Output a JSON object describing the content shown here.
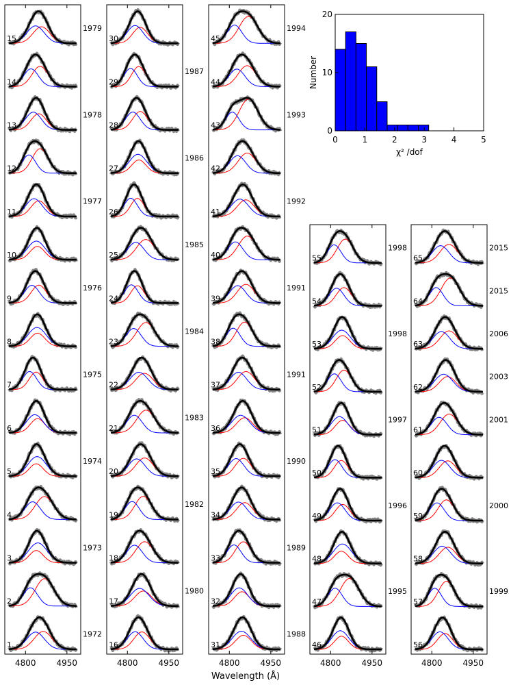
{
  "chart_data": [
    {
      "type": "line",
      "panel_grid": "5 columns of stacked emission-line profile fits (gray data, black total fit, blue and red Gaussian components)",
      "xlabel": "Wavelength (Å)",
      "x_ticks": [
        "4800",
        "4950"
      ],
      "xlim": [
        4725,
        5000
      ],
      "columns": [
        {
          "panels": [
            {
              "n": "15",
              "year": "1979"
            },
            {
              "n": "14",
              "year": ""
            },
            {
              "n": "13",
              "year": "1978"
            },
            {
              "n": "12",
              "year": ""
            },
            {
              "n": "11",
              "year": "1977"
            },
            {
              "n": "10",
              "year": ""
            },
            {
              "n": "9",
              "year": "1976"
            },
            {
              "n": "8",
              "year": ""
            },
            {
              "n": "7",
              "year": "1975"
            },
            {
              "n": "6",
              "year": ""
            },
            {
              "n": "5",
              "year": "1974"
            },
            {
              "n": "4",
              "year": ""
            },
            {
              "n": "3",
              "year": "1973"
            },
            {
              "n": "2",
              "year": ""
            },
            {
              "n": "1",
              "year": "1972"
            }
          ]
        },
        {
          "panels": [
            {
              "n": "30",
              "year": ""
            },
            {
              "n": "29",
              "year": "1987"
            },
            {
              "n": "28",
              "year": ""
            },
            {
              "n": "27",
              "year": "1986"
            },
            {
              "n": "26",
              "year": ""
            },
            {
              "n": "25",
              "year": "1985"
            },
            {
              "n": "24",
              "year": ""
            },
            {
              "n": "23",
              "year": "1984"
            },
            {
              "n": "22",
              "year": ""
            },
            {
              "n": "21",
              "year": "1983"
            },
            {
              "n": "20",
              "year": ""
            },
            {
              "n": "19",
              "year": "1982"
            },
            {
              "n": "18",
              "year": ""
            },
            {
              "n": "17",
              "year": "1980"
            },
            {
              "n": "16",
              "year": ""
            }
          ]
        },
        {
          "panels": [
            {
              "n": "45",
              "year": "1994"
            },
            {
              "n": "44",
              "year": ""
            },
            {
              "n": "43",
              "year": "1993"
            },
            {
              "n": "42",
              "year": ""
            },
            {
              "n": "41",
              "year": "1992"
            },
            {
              "n": "40",
              "year": ""
            },
            {
              "n": "39",
              "year": "1991"
            },
            {
              "n": "38",
              "year": ""
            },
            {
              "n": "37",
              "year": "1991"
            },
            {
              "n": "36",
              "year": ""
            },
            {
              "n": "35",
              "year": "1990"
            },
            {
              "n": "34",
              "year": ""
            },
            {
              "n": "33",
              "year": "1989"
            },
            {
              "n": "32",
              "year": ""
            },
            {
              "n": "31",
              "year": "1988"
            }
          ]
        },
        {
          "panels": [
            {
              "n": "55",
              "year": "1998"
            },
            {
              "n": "54",
              "year": ""
            },
            {
              "n": "53",
              "year": "1998"
            },
            {
              "n": "52",
              "year": ""
            },
            {
              "n": "51",
              "year": "1997"
            },
            {
              "n": "50",
              "year": ""
            },
            {
              "n": "49",
              "year": "1996"
            },
            {
              "n": "48",
              "year": ""
            },
            {
              "n": "47",
              "year": "1995"
            },
            {
              "n": "46",
              "year": ""
            }
          ]
        },
        {
          "panels": [
            {
              "n": "65",
              "year": "2015"
            },
            {
              "n": "64",
              "year": "2015"
            },
            {
              "n": "63",
              "year": "2006"
            },
            {
              "n": "62",
              "year": "2003"
            },
            {
              "n": "61",
              "year": "2001"
            },
            {
              "n": "60",
              "year": ""
            },
            {
              "n": "59",
              "year": "2000"
            },
            {
              "n": "58",
              "year": ""
            },
            {
              "n": "57",
              "year": "1999"
            },
            {
              "n": "56",
              "year": ""
            }
          ]
        }
      ],
      "colors": {
        "data": "#808080",
        "fit": "#000000",
        "blue_component": "#0000ff",
        "red_component": "#ff0000"
      }
    },
    {
      "type": "bar",
      "xlabel": "χ² /dof",
      "ylabel": "Number",
      "bin_edges": [
        0,
        0.35,
        0.7,
        1.05,
        1.4,
        1.75,
        2.1,
        2.45,
        2.8,
        3.15,
        3.5
      ],
      "values": [
        14,
        17,
        15,
        11,
        5,
        1,
        1,
        1,
        1,
        0
      ],
      "xlim": [
        0,
        5
      ],
      "ylim": [
        0,
        20
      ],
      "x_ticks": [
        "0",
        "1",
        "2",
        "3",
        "4",
        "5"
      ],
      "y_ticks": [
        "0",
        "10",
        "20"
      ],
      "bar_color": "#0000ff"
    }
  ]
}
